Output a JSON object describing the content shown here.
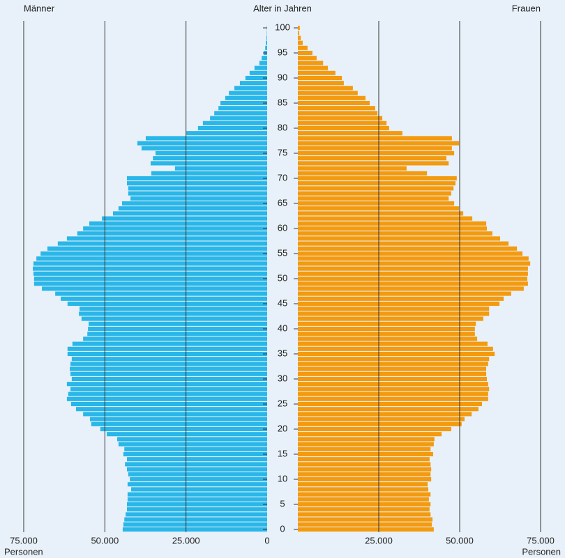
{
  "chart_data": {
    "type": "pyramid",
    "ylabel": "Alter in Jahren",
    "y": [
      0,
      1,
      2,
      3,
      4,
      5,
      6,
      7,
      8,
      9,
      10,
      11,
      12,
      13,
      14,
      15,
      16,
      17,
      18,
      19,
      20,
      21,
      22,
      23,
      24,
      25,
      26,
      27,
      28,
      29,
      30,
      31,
      32,
      33,
      34,
      35,
      36,
      37,
      38,
      39,
      40,
      41,
      42,
      43,
      44,
      45,
      46,
      47,
      48,
      49,
      50,
      51,
      52,
      53,
      54,
      55,
      56,
      57,
      58,
      59,
      60,
      61,
      62,
      63,
      64,
      65,
      66,
      67,
      68,
      69,
      70,
      71,
      72,
      73,
      74,
      75,
      76,
      77,
      78,
      79,
      80,
      81,
      82,
      83,
      84,
      85,
      86,
      87,
      88,
      89,
      90,
      91,
      92,
      93,
      94,
      95,
      96,
      97,
      98,
      99,
      100
    ],
    "ylim": [
      0,
      100
    ],
    "yticks": [
      0,
      5,
      10,
      15,
      20,
      25,
      30,
      35,
      40,
      45,
      50,
      55,
      60,
      65,
      70,
      75,
      80,
      85,
      90,
      95,
      100
    ],
    "xlim": [
      0,
      75000
    ],
    "xticks_left": [
      {
        "value": 75000,
        "label": "75.000"
      },
      {
        "value": 50000,
        "label": "50.000"
      },
      {
        "value": 25000,
        "label": "25.000"
      },
      0
    ],
    "xticks_right": [
      {
        "value": 25000,
        "label": "25.000"
      },
      {
        "value": 50000,
        "label": "50.000"
      },
      {
        "value": 75000,
        "label": "75.000"
      }
    ],
    "xlabel_left": "Personen",
    "xlabel_right": "Personen",
    "grid": true,
    "series": [
      {
        "name": "Männer",
        "color": "#29b6e8",
        "side": "left",
        "values": [
          44500,
          44300,
          44000,
          43600,
          43200,
          43200,
          43000,
          43000,
          41900,
          43000,
          42300,
          42800,
          43200,
          43800,
          43200,
          44300,
          44000,
          45800,
          46200,
          49400,
          51400,
          54200,
          54600,
          56700,
          58900,
          60400,
          61700,
          61300,
          60600,
          61700,
          60200,
          60600,
          60800,
          60600,
          60200,
          61500,
          61500,
          60000,
          56700,
          55400,
          55200,
          55000,
          57200,
          58000,
          57800,
          61500,
          63600,
          65300,
          69400,
          71800,
          71800,
          72000,
          72200,
          72000,
          71100,
          69800,
          67700,
          64500,
          61700,
          58500,
          56700,
          54800,
          50900,
          47500,
          45800,
          44700,
          42100,
          42800,
          42800,
          43200,
          43200,
          35700,
          28400,
          35900,
          35200,
          34400,
          38700,
          40000,
          37400,
          24900,
          21300,
          19800,
          17600,
          16300,
          15000,
          14400,
          12900,
          11800,
          10100,
          8400,
          6700,
          5400,
          3900,
          2400,
          1700,
          1100,
          600,
          400,
          200,
          100,
          100
        ]
      },
      {
        "name": "Frauen",
        "color": "#f39a0f",
        "side": "right",
        "values": [
          42000,
          41400,
          41600,
          41000,
          40700,
          41000,
          40500,
          41000,
          40300,
          40100,
          41200,
          41000,
          41200,
          41000,
          40700,
          41800,
          41000,
          42000,
          42200,
          44400,
          47400,
          50600,
          51500,
          53700,
          55800,
          56900,
          58800,
          58800,
          59100,
          58800,
          58400,
          58200,
          58200,
          58800,
          59100,
          60800,
          60300,
          58600,
          55400,
          54700,
          54700,
          55000,
          57300,
          59100,
          59100,
          62300,
          63600,
          65900,
          69800,
          71100,
          70900,
          71100,
          71100,
          71800,
          71300,
          69400,
          67700,
          65100,
          62500,
          60100,
          58400,
          58200,
          53900,
          51100,
          49800,
          48300,
          46600,
          47400,
          48100,
          48700,
          49100,
          39900,
          33600,
          46600,
          45900,
          48300,
          47600,
          49800,
          47600,
          32300,
          28200,
          27400,
          26100,
          24600,
          23900,
          22200,
          20900,
          18500,
          17000,
          14200,
          13600,
          11600,
          9300,
          7800,
          5800,
          4500,
          3000,
          1500,
          900,
          400,
          600
        ]
      }
    ]
  }
}
